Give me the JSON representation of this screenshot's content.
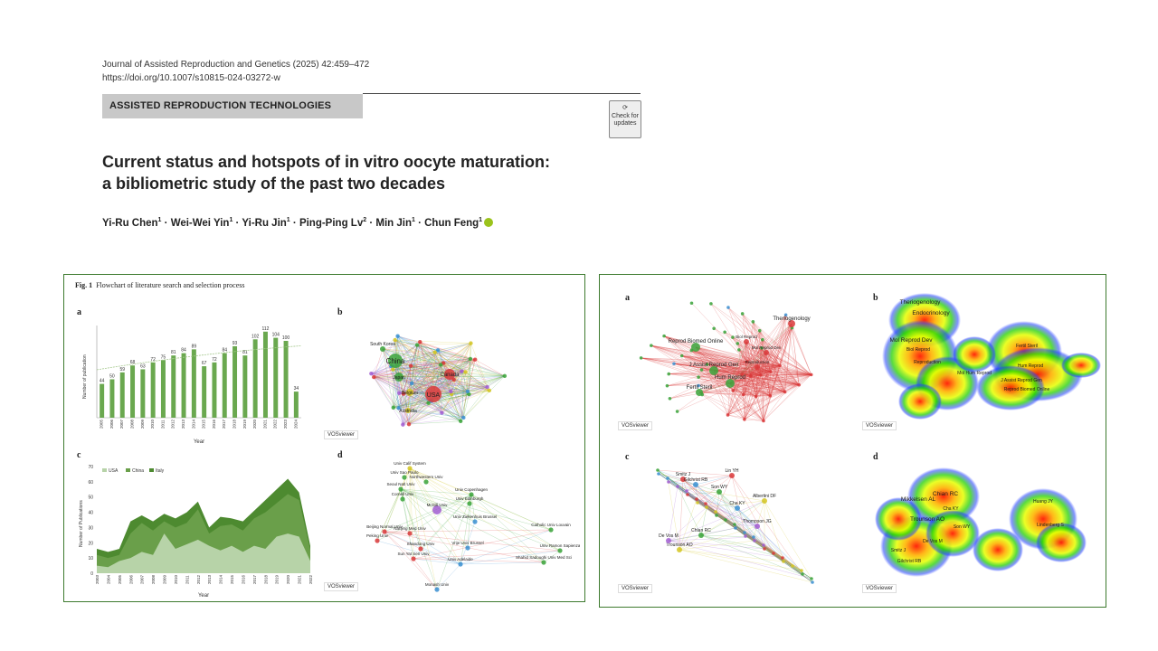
{
  "header": {
    "journal": "Journal of Assisted Reproduction and Genetics (2025) 42:459–472",
    "doi": "https://doi.org/10.1007/s10815-024-03272-w",
    "section": "ASSISTED REPRODUCTION TECHNOLOGIES",
    "check_updates": "Check for updates"
  },
  "title": {
    "line1": "Current status and hotspots of in vitro oocyte maturation:",
    "line2": "a bibliometric study of the past two decades"
  },
  "authors": [
    {
      "name": "Yi-Ru Chen",
      "aff": "1"
    },
    {
      "name": "Wei-Wei Yin",
      "aff": "1"
    },
    {
      "name": "Yi-Ru Jin",
      "aff": "1"
    },
    {
      "name": "Ping-Ping Lv",
      "aff": "2"
    },
    {
      "name": "Min Jin",
      "aff": "1"
    },
    {
      "name": "Chun Feng",
      "aff": "1"
    }
  ],
  "fig1": {
    "caption_label": "Fig. 1",
    "caption": "Flowchart of literature search and selection process",
    "panel_labels": [
      "a",
      "b",
      "c",
      "d"
    ],
    "vosviewer_label": "VOSviewer"
  },
  "fig2": {
    "panel_labels": [
      "a",
      "b",
      "c",
      "d"
    ],
    "vosviewer_label": "VOSviewer"
  },
  "colors": {
    "bar": "#6aa84f",
    "usa": "#b7d3a8",
    "china": "#6a9f4a",
    "italy": "#4d8a30",
    "frame": "#3d7a2e"
  },
  "chart_data": [
    {
      "type": "bar",
      "panel": "a",
      "categories": [
        "2005",
        "2006",
        "2007",
        "2008",
        "2009",
        "2010",
        "2011",
        "2012",
        "2013",
        "2014",
        "2015",
        "2016",
        "2017",
        "2018",
        "2019",
        "2020",
        "2021",
        "2022",
        "2023",
        "2024"
      ],
      "values": [
        44,
        50,
        59,
        68,
        63,
        72,
        75,
        81,
        84,
        89,
        67,
        72,
        84,
        93,
        81,
        102,
        112,
        104,
        100,
        34
      ],
      "xlabel": "Year",
      "ylabel": "Number of publication",
      "ylim": [
        0,
        120
      ]
    },
    {
      "type": "area",
      "panel": "c",
      "categories": [
        "2003",
        "2004",
        "2005",
        "2006",
        "2007",
        "2008",
        "2009",
        "2010",
        "2011",
        "2012",
        "2013",
        "2014",
        "2015",
        "2016",
        "2017",
        "2018",
        "2019",
        "2020",
        "2021",
        "2022"
      ],
      "yticks": [
        0,
        10,
        20,
        30,
        40,
        50,
        60,
        70
      ],
      "series": [
        {
          "name": "USA",
          "values": [
            5,
            4,
            8,
            10,
            14,
            12,
            26,
            16,
            19,
            22,
            18,
            15,
            18,
            14,
            18,
            16,
            24,
            26,
            24,
            8
          ]
        },
        {
          "name": "China",
          "values": [
            12,
            10,
            12,
            26,
            33,
            28,
            34,
            30,
            33,
            42,
            26,
            31,
            32,
            28,
            36,
            40,
            46,
            52,
            48,
            15
          ]
        },
        {
          "name": "Italy",
          "values": [
            16,
            14,
            16,
            34,
            38,
            34,
            39,
            36,
            40,
            47,
            30,
            37,
            36,
            34,
            41,
            48,
            55,
            62,
            53,
            18
          ]
        }
      ],
      "xlabel": "Year",
      "ylabel": "Number of Publications",
      "ylim": [
        0,
        70
      ],
      "legend": "top-left"
    }
  ],
  "network_b": {
    "nodes": [
      {
        "label": "China",
        "color": "#3aa33a"
      },
      {
        "label": "USA",
        "color": "#d9383a"
      },
      {
        "label": "Canada",
        "color": "#d9383a"
      },
      {
        "label": "Japan",
        "color": "#3aa33a"
      },
      {
        "label": "Belgium",
        "color": "#d4c521"
      },
      {
        "label": "South Korea",
        "color": "#3aa33a"
      },
      {
        "label": "Australia",
        "color": "#d4c521"
      }
    ]
  },
  "network_d": {
    "nodes": [
      {
        "label": "Univ Calif System",
        "color": "#d4c521"
      },
      {
        "label": "Univ Sao Paulo",
        "color": "#3aa33a"
      },
      {
        "label": "Northwestern Univ",
        "color": "#3aa33a"
      },
      {
        "label": "Seoul Natl Univ",
        "color": "#3aa33a"
      },
      {
        "label": "Cornell Univ",
        "color": "#3aa33a"
      },
      {
        "label": "McGill Univ",
        "color": "#a15dd1"
      },
      {
        "label": "Univ Copenhagen",
        "color": "#3aa33a"
      },
      {
        "label": "Univ Edinburgh",
        "color": "#3aa33a"
      },
      {
        "label": "Vrije Univ Brussel",
        "color": "#3a8fd1"
      },
      {
        "label": "Univ Adelaide",
        "color": "#3a8fd1"
      },
      {
        "label": "Univ Ziekenhuis Brussel",
        "color": "#3a8fd1"
      },
      {
        "label": "Peking Univ",
        "color": "#d9383a"
      },
      {
        "label": "Beijing Normal Univ",
        "color": "#d9383a"
      },
      {
        "label": "Nanjing Med Univ",
        "color": "#d9383a"
      },
      {
        "label": "Shandong Univ",
        "color": "#d9383a"
      },
      {
        "label": "Sun Yat Sen Univ",
        "color": "#d9383a"
      },
      {
        "label": "Monash Univ",
        "color": "#3a8fd1"
      },
      {
        "label": "Catholic Univ Louvain",
        "color": "#3aa33a"
      },
      {
        "label": "Univ Ramon Sapienza",
        "color": "#3aa33a"
      },
      {
        "label": "Shahid Sadoughi Univ Med Sci",
        "color": "#3aa33a"
      }
    ]
  },
  "fig2_a": {
    "nodes": [
      {
        "label": "Reprod Biomed Online",
        "color": "#3aa33a"
      },
      {
        "label": "J Assist Reprod Gen",
        "color": "#3aa33a"
      },
      {
        "label": "Hum Reprod",
        "color": "#3aa33a"
      },
      {
        "label": "Fertil Steril",
        "color": "#3aa33a"
      },
      {
        "label": "Theriogenology",
        "color": "#d9383a"
      },
      {
        "label": "Biol Reprod",
        "color": "#d9383a"
      },
      {
        "label": "Mol Reprod Dev",
        "color": "#d9383a"
      },
      {
        "label": "Reproduction",
        "color": "#d9383a"
      }
    ]
  },
  "fig2_b": {
    "labels": [
      "Theriogenology",
      "Endocrinology",
      "Mol Reprod Dev",
      "Biol Reprod",
      "Reproduction",
      "Fertil Steril",
      "Hum Reprod",
      "J Assist Reprod Gen",
      "Reprod Biomed Online",
      "Mol Hum Reprod"
    ]
  },
  "fig2_c": {
    "labels": [
      "Chian RC",
      "Smitz J",
      "Gilchrist RB",
      "Trounson AO",
      "De Vos M",
      "Son WY",
      "Lin YH",
      "Cha KY",
      "Albertini DF",
      "Thompson JG"
    ]
  },
  "fig2_d": {
    "labels": [
      "Chian RC",
      "Mikkelsen AL",
      "Trounson AO",
      "Cha KY",
      "Son WY",
      "Smitz J",
      "Gilchrist RB",
      "De Vos M",
      "Huang JY",
      "Lindenberg S"
    ]
  }
}
